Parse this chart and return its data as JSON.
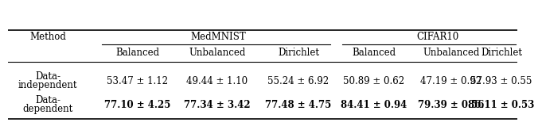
{
  "col_headers_level1_left": "Method",
  "col_headers_level1_medmnist": "MedMNIST",
  "col_headers_level1_cifar": "CIFAR10",
  "col_headers_level2": [
    "Balanced",
    "Unbalanced",
    "Dirichlet",
    "Balanced",
    "Unbalanced",
    "Dirichlet"
  ],
  "rows": [
    {
      "method_line1": "Data-",
      "method_line2": "independent",
      "values": [
        "53.47 ± 1.12",
        "49.44 ± 1.10",
        "55.24 ± 6.92",
        "50.89 ± 0.62",
        "47.19 ± 0.92",
        "57.93 ± 0.55"
      ],
      "bold": false
    },
    {
      "method_line1": "Data-",
      "method_line2": "dependent",
      "values": [
        "77.10 ± 4.25",
        "77.34 ± 3.42",
        "77.48 ± 4.75",
        "84.41 ± 0.94",
        "79.39 ± 0.56",
        "86.11 ± 0.53"
      ],
      "bold": true
    }
  ],
  "background_color": "#ffffff",
  "line_color": "#000000",
  "font_size": 8.5
}
